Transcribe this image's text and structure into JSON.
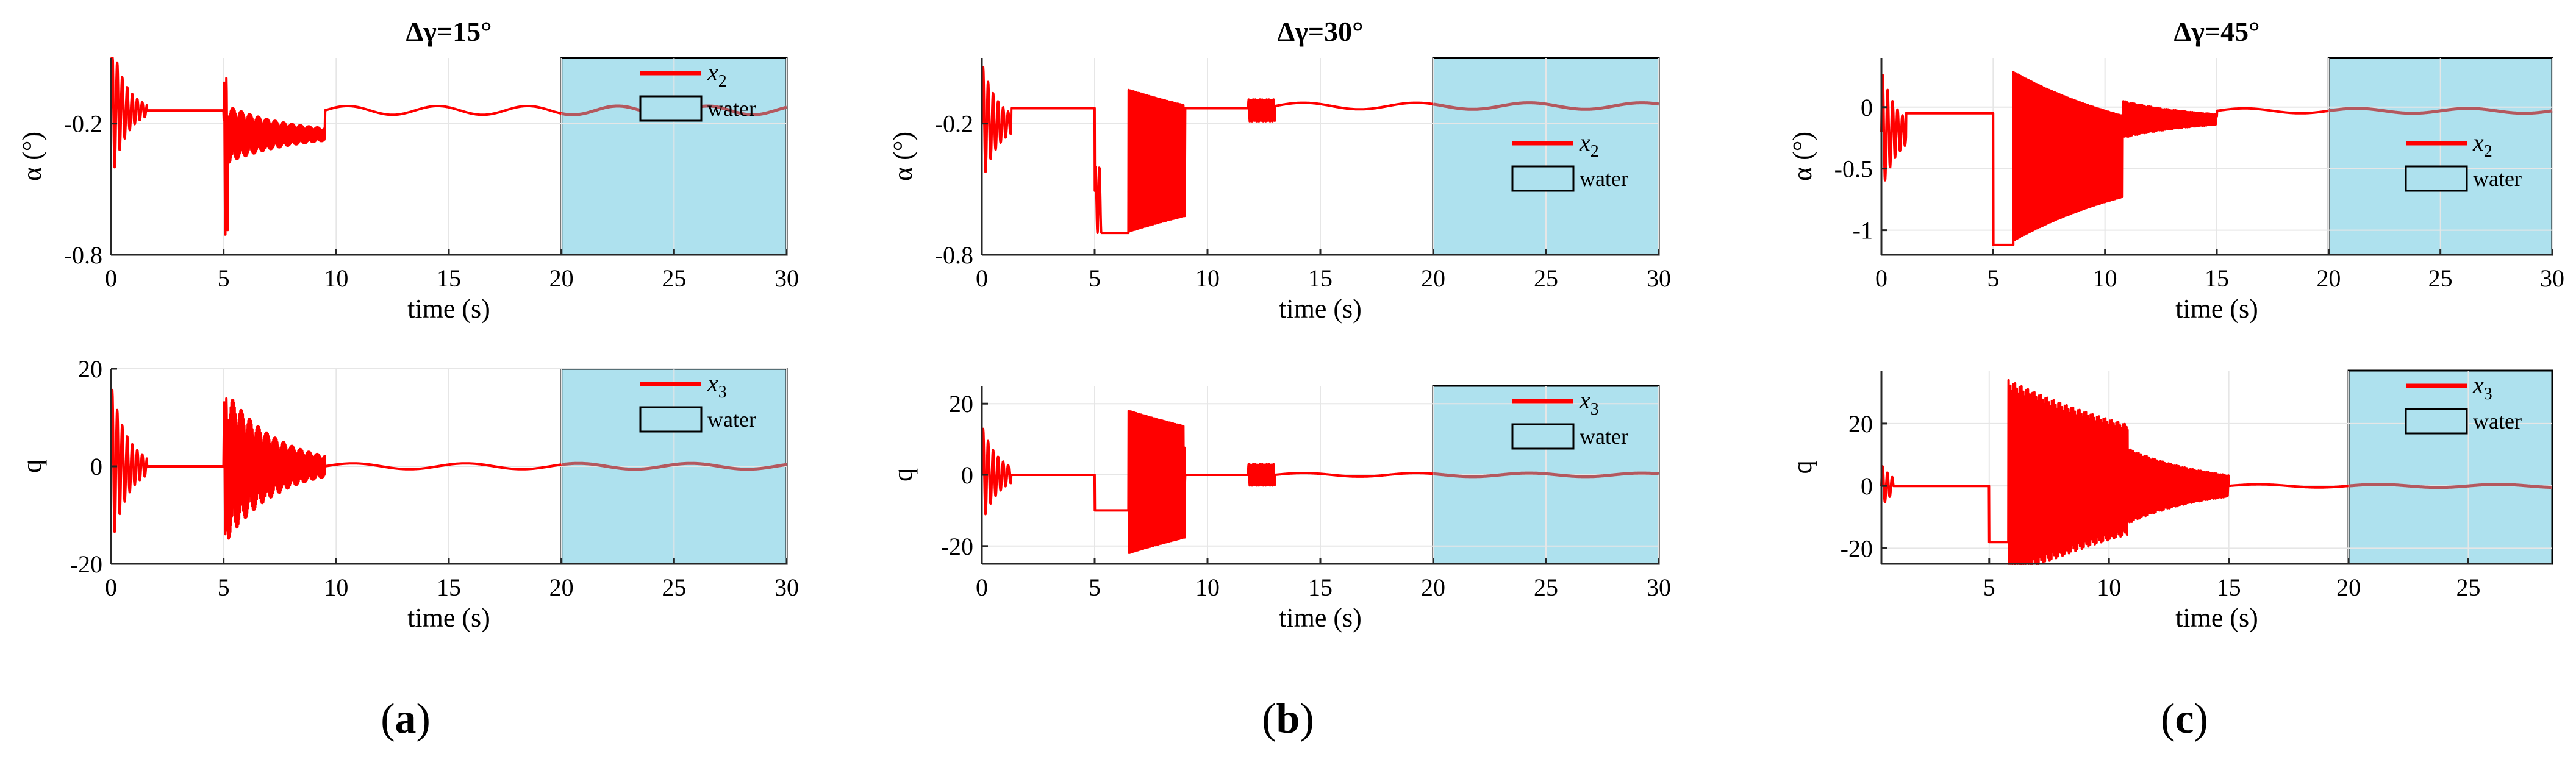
{
  "colors": {
    "signal": "#ff0000",
    "water_fill": "#aee1ee",
    "water_signal": "#b4585e",
    "grid": "#e6e6e6",
    "axis": "#262626"
  },
  "subfigure_labels": [
    "a",
    "b",
    "c"
  ],
  "chart_data": [
    {
      "type": "line",
      "id": "a-alpha",
      "title": "Δγ=15°",
      "xlabel": "time (s)",
      "ylabel": "α (°)",
      "xlim": [
        0,
        30
      ],
      "ylim": [
        -0.8,
        0.1
      ],
      "xticks": [
        "0",
        "5",
        "10",
        "15",
        "20",
        "25",
        "30"
      ],
      "yticks": [
        "-0.8",
        "-0.2"
      ],
      "legend": {
        "placement": "top-right",
        "series": "x",
        "subscript": "2",
        "water": "water"
      },
      "water_region": [
        20,
        30
      ],
      "series": [
        {
          "name": "x2",
          "steady": -0.14,
          "segments": [
            {
              "from": 0.0,
              "to": 1.6,
              "mean": -0.14,
              "amp": 0.34,
              "freq": 4.5,
              "decay": 1.6
            },
            {
              "from": 5.0,
              "to": 5.2,
              "mean": -0.35,
              "amp": 0.36,
              "freq": 10,
              "decay": 0
            },
            {
              "from": 5.2,
              "to": 9.5,
              "mean": -0.25,
              "amp": 0.13,
              "freq": 28,
              "decay": 0.35
            },
            {
              "from": 9.5,
              "to": 30,
              "mean": -0.14,
              "amp": 0.02,
              "freq": 0.25,
              "decay": 0
            }
          ]
        }
      ]
    },
    {
      "type": "line",
      "id": "a-q",
      "title": "",
      "xlabel": "time (s)",
      "ylabel": "q",
      "xlim": [
        0,
        30
      ],
      "ylim": [
        -20,
        20
      ],
      "xticks": [
        "0",
        "5",
        "10",
        "15",
        "20",
        "25",
        "30"
      ],
      "yticks": [
        "-20",
        "0",
        "20"
      ],
      "legend": {
        "placement": "top-right",
        "series": "x",
        "subscript": "3",
        "water": "water"
      },
      "water_region": [
        20,
        30
      ],
      "series": [
        {
          "name": "x3",
          "steady": 0,
          "segments": [
            {
              "from": 0.0,
              "to": 1.6,
              "mean": 0,
              "amp": 17,
              "freq": 4.5,
              "decay": 1.4
            },
            {
              "from": 5.0,
              "to": 5.2,
              "mean": 0,
              "amp": 14,
              "freq": 10,
              "decay": 0
            },
            {
              "from": 5.2,
              "to": 9.5,
              "mean": 0,
              "amp": 15,
              "freq": 28,
              "decay": 0.45
            },
            {
              "from": 9.5,
              "to": 30,
              "mean": 0,
              "amp": 0.6,
              "freq": 0.2,
              "decay": 0
            }
          ]
        }
      ]
    },
    {
      "type": "line",
      "id": "b-alpha",
      "title": "Δγ=30°",
      "xlabel": "time (s)",
      "ylabel": "α (°)",
      "xlim": [
        0,
        30
      ],
      "ylim": [
        -0.8,
        0.1
      ],
      "xticks": [
        "0",
        "5",
        "10",
        "15",
        "20",
        "25",
        "30"
      ],
      "yticks": [
        "-0.8",
        "-0.2"
      ],
      "legend": {
        "placement": "center-right",
        "series": "x",
        "subscript": "2",
        "water": "water"
      },
      "water_region": [
        20,
        30
      ],
      "series": [
        {
          "name": "x2",
          "steady": -0.12,
          "segments": [
            {
              "from": 0.0,
              "to": 1.3,
              "mean": -0.2,
              "amp": 0.28,
              "freq": 4.5,
              "decay": 1.4
            },
            {
              "from": 1.3,
              "to": 5.0,
              "mean": -0.13,
              "amp": 0,
              "freq": 0,
              "decay": 0
            },
            {
              "from": 5.0,
              "to": 5.3,
              "mean": -0.55,
              "amp": 0.15,
              "freq": 6,
              "decay": 0
            },
            {
              "from": 5.3,
              "to": 6.5,
              "mean": -0.7,
              "amp": 0.01,
              "freq": 0,
              "decay": 0
            },
            {
              "from": 6.5,
              "to": 9.0,
              "mean": -0.37,
              "amp": 0.34,
              "freq": 26,
              "decay": 0.1
            },
            {
              "from": 9.0,
              "to": 11.8,
              "mean": -0.13,
              "amp": 0.01,
              "freq": 0,
              "decay": 0
            },
            {
              "from": 11.8,
              "to": 13.0,
              "mean": -0.14,
              "amp": 0.05,
              "freq": 10,
              "decay": 0
            },
            {
              "from": 13.0,
              "to": 30,
              "mean": -0.12,
              "amp": 0.015,
              "freq": 0.2,
              "decay": 0
            }
          ]
        }
      ]
    },
    {
      "type": "line",
      "id": "b-q",
      "title": "",
      "xlabel": "time (s)",
      "ylabel": "q",
      "xlim": [
        0,
        30
      ],
      "ylim": [
        -25,
        25
      ],
      "xticks": [
        "0",
        "5",
        "10",
        "15",
        "20",
        "25",
        "30"
      ],
      "yticks": [
        "-20",
        "0",
        "20"
      ],
      "legend": {
        "placement": "top-right",
        "series": "x",
        "subscript": "3",
        "water": "water"
      },
      "water_region": [
        20,
        30
      ],
      "series": [
        {
          "name": "x3",
          "steady": 0,
          "segments": [
            {
              "from": 0.0,
              "to": 1.3,
              "mean": 0,
              "amp": 14,
              "freq": 4.5,
              "decay": 1.4
            },
            {
              "from": 1.3,
              "to": 5.0,
              "mean": 0,
              "amp": 0,
              "freq": 0,
              "decay": 0
            },
            {
              "from": 5.0,
              "to": 6.5,
              "mean": -10,
              "amp": 0,
              "freq": 0,
              "decay": 0
            },
            {
              "from": 6.5,
              "to": 9.0,
              "mean": -2,
              "amp": 21,
              "freq": 26,
              "decay": 0.1
            },
            {
              "from": 9.0,
              "to": 11.8,
              "mean": 0,
              "amp": 0,
              "freq": 0,
              "decay": 0
            },
            {
              "from": 11.8,
              "to": 13.0,
              "mean": 0,
              "amp": 3,
              "freq": 10,
              "decay": 0
            },
            {
              "from": 13.0,
              "to": 30,
              "mean": 0,
              "amp": 0.5,
              "freq": 0.2,
              "decay": 0
            }
          ]
        }
      ]
    },
    {
      "type": "line",
      "id": "c-alpha",
      "title": "Δγ=45°",
      "xlabel": "time (s)",
      "ylabel": "α (°)",
      "xlim": [
        0,
        30
      ],
      "ylim": [
        -1.2,
        0.4
      ],
      "xticks": [
        "0",
        "5",
        "10",
        "15",
        "20",
        "25",
        "30"
      ],
      "yticks": [
        "-1",
        "-0.5",
        "0"
      ],
      "legend": {
        "placement": "center-right",
        "series": "x",
        "subscript": "2",
        "water": "water"
      },
      "water_region": [
        20,
        30
      ],
      "series": [
        {
          "name": "x2",
          "steady": 0,
          "segments": [
            {
              "from": 0.0,
              "to": 1.1,
              "mean": -0.2,
              "amp": 0.5,
              "freq": 4.5,
              "decay": 1.4
            },
            {
              "from": 1.1,
              "to": 5.0,
              "mean": -0.05,
              "amp": 0,
              "freq": 0,
              "decay": 0
            },
            {
              "from": 5.0,
              "to": 5.9,
              "mean": -1.12,
              "amp": 0.02,
              "freq": 0,
              "decay": 0
            },
            {
              "from": 5.9,
              "to": 10.8,
              "mean": -0.4,
              "amp": 0.72,
              "freq": 26,
              "decay": 0.15
            },
            {
              "from": 10.8,
              "to": 15.0,
              "mean": -0.1,
              "amp": 0.15,
              "freq": 12,
              "decay": 0.3
            },
            {
              "from": 15.0,
              "to": 30,
              "mean": -0.03,
              "amp": 0.02,
              "freq": 0.2,
              "decay": 0
            }
          ]
        }
      ]
    },
    {
      "type": "line",
      "id": "c-q",
      "title": "",
      "xlabel": "time (s)",
      "ylabel": "q",
      "xlim": [
        0.5,
        28.5
      ],
      "ylim": [
        -25,
        37
      ],
      "xticks": [
        "5",
        "10",
        "15",
        "20",
        "25"
      ],
      "yticks": [
        "-20",
        "0",
        "20"
      ],
      "legend": {
        "placement": "top-right",
        "series": "x",
        "subscript": "3",
        "water": "water"
      },
      "water_region": [
        20,
        28.5
      ],
      "series": [
        {
          "name": "x3",
          "steady": 0,
          "segments": [
            {
              "from": 0.5,
              "to": 1.0,
              "mean": 0,
              "amp": 7,
              "freq": 5,
              "decay": 2
            },
            {
              "from": 1.0,
              "to": 5.0,
              "mean": 0,
              "amp": 0,
              "freq": 0,
              "decay": 0
            },
            {
              "from": 5.0,
              "to": 5.8,
              "mean": -18,
              "amp": 0,
              "freq": 0,
              "decay": 0
            },
            {
              "from": 5.8,
              "to": 10.8,
              "mean": 2,
              "amp": 32,
              "freq": 26,
              "decay": 0.12
            },
            {
              "from": 10.8,
              "to": 15.0,
              "mean": 0,
              "amp": 12,
              "freq": 12,
              "decay": 0.3
            },
            {
              "from": 15.0,
              "to": 28.5,
              "mean": 0,
              "amp": 0.5,
              "freq": 0.2,
              "decay": 0
            }
          ]
        }
      ]
    }
  ]
}
